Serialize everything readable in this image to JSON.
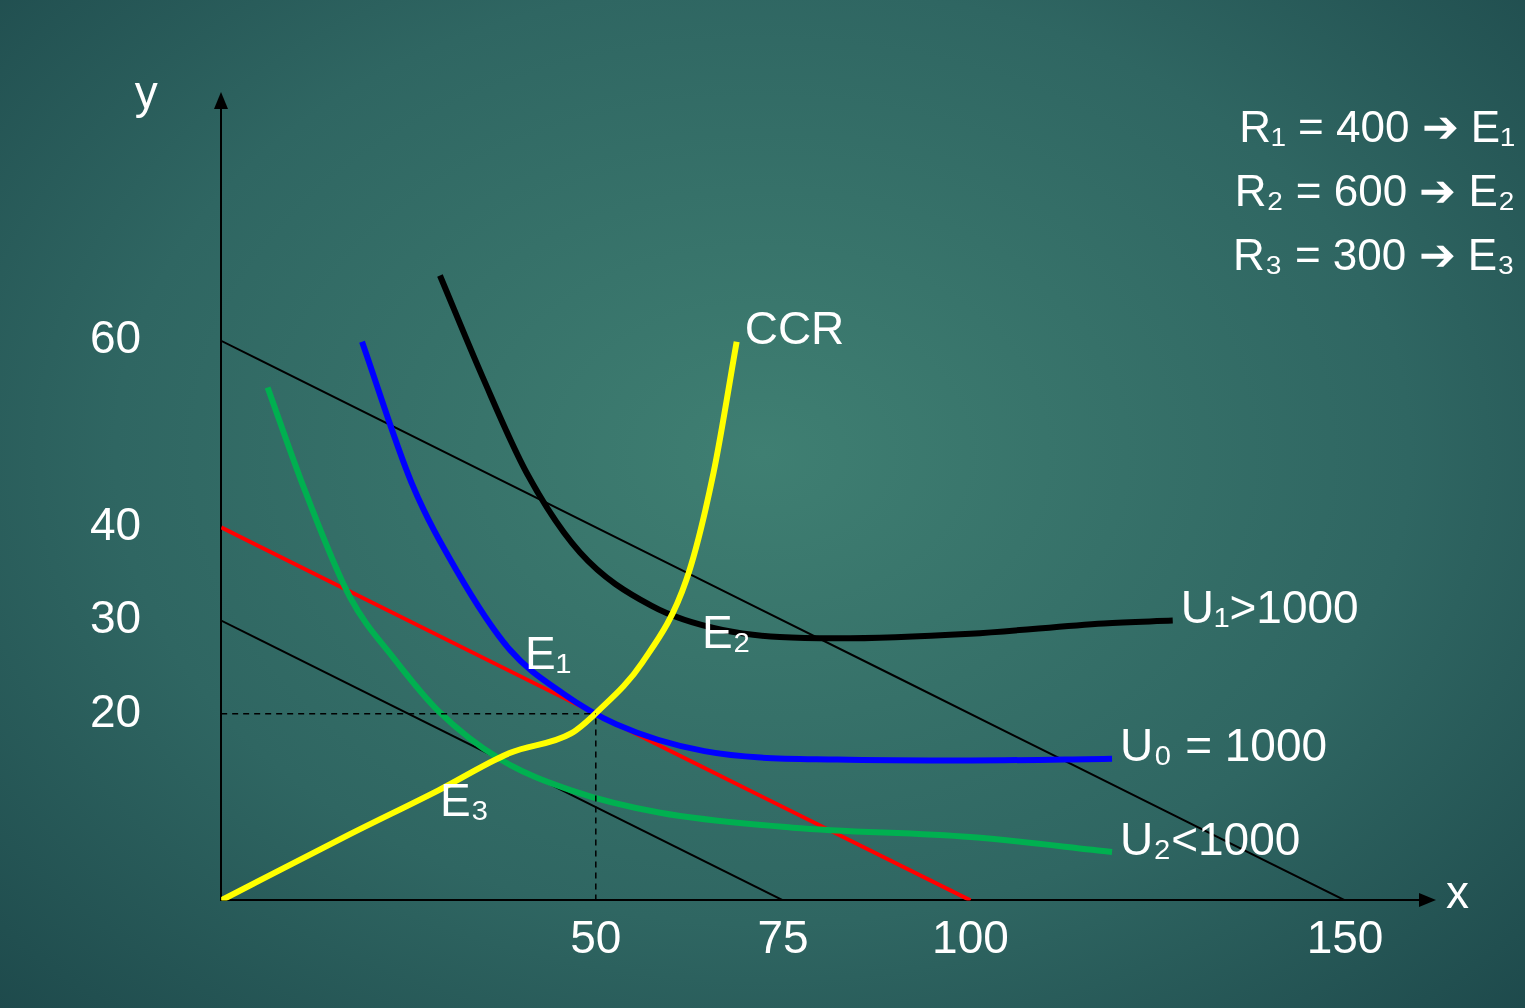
{
  "chart_data": {
    "type": "line",
    "xlabel": "x",
    "ylabel": "y",
    "xlim": [
      0,
      160
    ],
    "ylim": [
      0,
      85
    ],
    "xticks": [
      50,
      75,
      100,
      150
    ],
    "yticks": [
      20,
      30,
      40,
      60
    ],
    "grid": false,
    "legend": false,
    "marker": "none",
    "series": [
      {
        "x": [
          0,
          150
        ],
        "values": [
          60,
          0
        ],
        "color": "#000000"
      },
      {
        "x": [
          0,
          100
        ],
        "values": [
          40,
          0
        ],
        "color": "#ff0000"
      },
      {
        "x": [
          0,
          75
        ],
        "values": [
          30,
          0
        ],
        "color": "#000000"
      },
      {
        "name": "U₁>1000",
        "color": "#000000",
        "x": [
          29.2,
          34.9,
          40.8,
          47.9,
          57.4,
          66.9,
          82.2,
          100,
          117.8,
          127
        ],
        "values": [
          67,
          56.1,
          45.8,
          37.3,
          31.6,
          29,
          28.1,
          28.6,
          29.7,
          30
        ]
      },
      {
        "name": "U₀ = 1000",
        "color": "#0000ff",
        "x": [
          18.8,
          25.4,
          31.4,
          38.5,
          45.6,
          52.7,
          64.5,
          82.2,
          100,
          118.9
        ],
        "values": [
          59.9,
          44.8,
          35.4,
          26.9,
          22.2,
          18.9,
          16,
          15.1,
          15,
          15.2
        ]
      },
      {
        "name": "U₂<1000",
        "color": "#00b050",
        "x": [
          6.2,
          11.2,
          17.2,
          23.1,
          29,
          37.3,
          46.7,
          58.6,
          76.3,
          100,
          118.9
        ],
        "values": [
          55,
          43.9,
          32.5,
          25.9,
          20.3,
          15.1,
          11.8,
          9.4,
          7.8,
          6.8,
          5.2
        ]
      },
      {
        "name": "CCR",
        "color": "#ffff00",
        "x": [
          0,
          17.2,
          29,
          38.5,
          46.7,
          50.3,
          56.2,
          62.1,
          65.7,
          68.8
        ],
        "values": [
          0,
          7.1,
          11.8,
          15.8,
          17.9,
          20.3,
          25.5,
          34.4,
          45.8,
          59.9
        ]
      }
    ],
    "ref_lines": [
      {
        "axis": "x",
        "value": 50,
        "line_style": "dashed",
        "color": "#000000"
      },
      {
        "axis": "y",
        "value": 20,
        "line_style": "dashed",
        "color": "#000000"
      }
    ],
    "annotations": [
      {
        "text": "E₁",
        "x": 50.3,
        "y": 20.3
      },
      {
        "text": "E₂",
        "x": 57.4,
        "y": 31.6
      },
      {
        "text": "E₃",
        "x": 38.5,
        "y": 15.8
      },
      "R₁ = 400 ➔ E₁",
      "R₂ = 600 ➔ E₂",
      "R₃ = 300 ➔ E₃"
    ]
  }
}
